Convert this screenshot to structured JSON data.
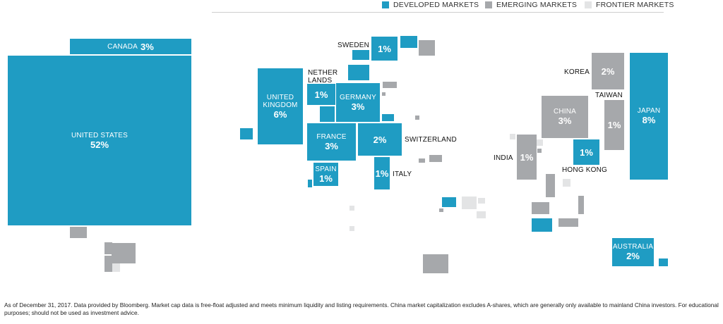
{
  "legend": [
    {
      "key": "developed",
      "label": "DEVELOPED MARKETS",
      "color": "#1f9cc3"
    },
    {
      "key": "emerging",
      "label": "EMERGING MARKETS",
      "color": "#a6a8ab"
    },
    {
      "key": "frontier",
      "label": "FRONTIER MARKETS",
      "color": "#e3e4e5"
    }
  ],
  "colors": {
    "developed": "#1f9cc3",
    "emerging": "#a6a8ab",
    "frontier": "#e3e4e5"
  },
  "chart_data": {
    "type": "table",
    "title": "",
    "categories": [
      "UNITED STATES",
      "JAPAN",
      "UNITED KINGDOM",
      "CANADA",
      "FRANCE",
      "GERMANY",
      "CHINA",
      "SWITZERLAND",
      "KOREA",
      "AUSTRALIA",
      "SWEDEN",
      "NETHERLANDS",
      "SPAIN",
      "ITALY",
      "INDIA",
      "TAIWAN",
      "HONG KONG"
    ],
    "series": [
      {
        "values": [
          52,
          8,
          6,
          3,
          3,
          3,
          3,
          2,
          2,
          2,
          1,
          1,
          1,
          1,
          1,
          1,
          1
        ]
      }
    ],
    "classification": [
      "developed",
      "developed",
      "developed",
      "developed",
      "developed",
      "developed",
      "emerging",
      "developed",
      "emerging",
      "developed",
      "developed",
      "developed",
      "developed",
      "developed",
      "emerging",
      "emerging",
      "developed"
    ],
    "labels": {
      "united_states": {
        "name": "UNITED STATES",
        "pct": "52%"
      },
      "canada": {
        "name": "CANADA",
        "pct": "3%"
      },
      "united_kingdom": {
        "name1": "UNITED",
        "name2": "KINGDOM",
        "pct": "6%"
      },
      "netherlands": {
        "name1": "NETHER",
        "name2": "LANDS",
        "pct": "1%"
      },
      "germany": {
        "name": "GERMANY",
        "pct": "3%"
      },
      "sweden": {
        "name": "SWEDEN",
        "pct": "1%"
      },
      "france": {
        "name": "FRANCE",
        "pct": "3%"
      },
      "switzerland": {
        "name": "SWITZERLAND",
        "pct": "2%"
      },
      "spain": {
        "name": "SPAIN",
        "pct": "1%"
      },
      "italy": {
        "name": "ITALY",
        "pct": "1%"
      },
      "india": {
        "name": "INDIA",
        "pct": "1%"
      },
      "china": {
        "name": "CHINA",
        "pct": "3%"
      },
      "korea": {
        "name": "KOREA",
        "pct": "2%"
      },
      "taiwan": {
        "name": "TAIWAN",
        "pct": "1%"
      },
      "hong_kong": {
        "name": "HONG KONG",
        "pct": "1%"
      },
      "japan": {
        "name": "JAPAN",
        "pct": "8%"
      },
      "australia": {
        "name": "AUSTRALIA",
        "pct": "2%"
      }
    }
  },
  "footnote": "As of December 31, 2017. Data provided by Bloomberg. Market cap data is free-float adjusted and meets minimum liquidity and listing requirements. China market capitalization excludes A-shares, which are generally only available to mainland China investors. For educational purposes; should not be used as investment advice."
}
